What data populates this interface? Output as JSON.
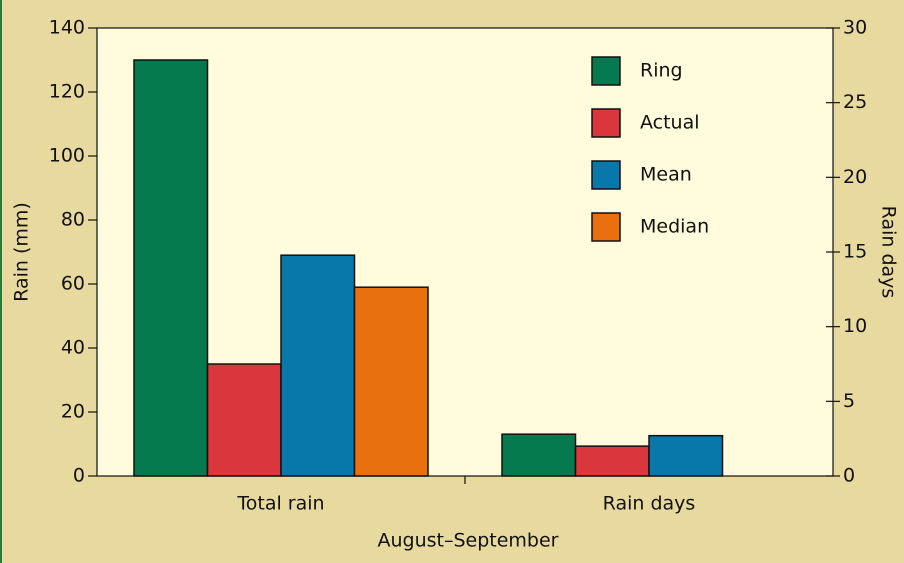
{
  "chart_data": {
    "type": "bar",
    "x_label": "August–September",
    "y_label": "Rain (mm)",
    "y2_label": "Rain days",
    "categories": [
      "Total rain",
      "Rain days"
    ],
    "category_axes": [
      "y",
      "y2"
    ],
    "series": [
      {
        "name": "Ring",
        "color": "#047a4e",
        "values": [
          130,
          2.8
        ]
      },
      {
        "name": "Actual",
        "color": "#d9363e",
        "values": [
          35,
          2.0
        ]
      },
      {
        "name": "Mean",
        "color": "#0877aa",
        "values": [
          69,
          2.7
        ]
      },
      {
        "name": "Median",
        "color": "#e8700e",
        "values": [
          59,
          null
        ]
      }
    ],
    "ylim": [
      0,
      140
    ],
    "yticks": [
      0,
      20,
      40,
      60,
      80,
      100,
      120,
      140
    ],
    "y2lim": [
      0,
      30
    ],
    "y2ticks": [
      0,
      5,
      10,
      15,
      20,
      25,
      30
    ],
    "legend": "top-right"
  }
}
